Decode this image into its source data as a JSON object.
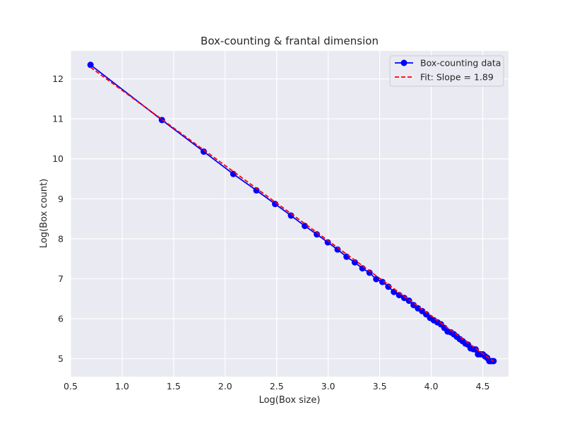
{
  "chart_data": {
    "type": "line",
    "title": "Box-counting & frantal dimension",
    "xlabel": "Log(Box size)",
    "ylabel": "Log(Box count)",
    "xlim": [
      0.5,
      4.75
    ],
    "ylim": [
      4.55,
      12.7
    ],
    "xticks": [
      "0.5",
      "1.0",
      "1.5",
      "2.0",
      "2.5",
      "3.0",
      "3.5",
      "4.0",
      "4.5"
    ],
    "yticks": [
      "5",
      "6",
      "7",
      "8",
      "9",
      "10",
      "11",
      "12"
    ],
    "grid": true,
    "legend_position": "top-right",
    "series": [
      {
        "name": "Box-counting data",
        "style": "solid line with circle markers",
        "color": "#0000ff",
        "x": [
          0.693,
          1.386,
          1.792,
          2.079,
          2.303,
          2.485,
          2.639,
          2.773,
          2.89,
          2.996,
          3.091,
          3.178,
          3.258,
          3.332,
          3.401,
          3.466,
          3.526,
          3.584,
          3.638,
          3.689,
          3.738,
          3.784,
          3.829,
          3.871,
          3.912,
          3.951,
          3.989,
          4.025,
          4.06,
          4.094,
          4.127,
          4.159,
          4.19,
          4.22,
          4.248,
          4.277,
          4.304,
          4.331,
          4.357,
          4.382,
          4.407,
          4.431,
          4.454,
          4.477,
          4.5,
          4.522,
          4.543,
          4.564,
          4.585,
          4.605
        ],
        "y": [
          12.35,
          10.97,
          10.18,
          9.62,
          9.21,
          8.87,
          8.58,
          8.32,
          8.11,
          7.91,
          7.73,
          7.55,
          7.41,
          7.26,
          7.15,
          6.99,
          6.92,
          6.8,
          6.67,
          6.59,
          6.52,
          6.45,
          6.34,
          6.26,
          6.19,
          6.11,
          6.02,
          5.96,
          5.91,
          5.86,
          5.77,
          5.68,
          5.66,
          5.61,
          5.55,
          5.49,
          5.44,
          5.38,
          5.35,
          5.26,
          5.24,
          5.23,
          5.11,
          5.11,
          5.11,
          5.06,
          5.02,
          4.94,
          4.94,
          4.94
        ]
      },
      {
        "name": "Fit: Slope = 1.89",
        "style": "dashed line",
        "color": "#ff0000",
        "x": [
          0.693,
          4.605
        ],
        "y": [
          12.29,
          4.93
        ]
      }
    ]
  }
}
